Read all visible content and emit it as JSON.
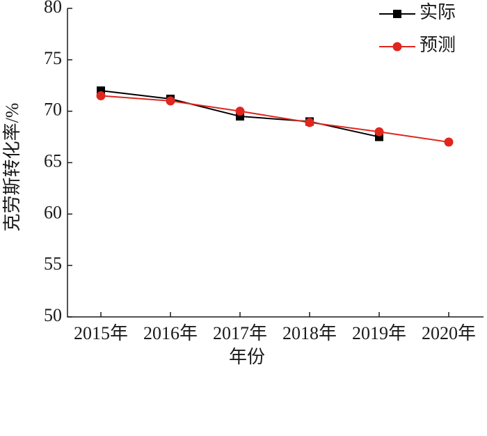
{
  "chart_data": {
    "type": "line",
    "x_label": "年份",
    "y_label": "克劳斯转化率/%",
    "categories": [
      "2015年",
      "2016年",
      "2017年",
      "2018年",
      "2019年",
      "2020年"
    ],
    "series": [
      {
        "name": "实际",
        "color": "#000000",
        "marker": "square",
        "values": [
          72,
          71.2,
          69.5,
          69,
          67.5,
          null
        ]
      },
      {
        "name": "预测",
        "color": "#e0261e",
        "marker": "circle",
        "values": [
          71.5,
          71,
          70,
          68.9,
          68,
          67
        ]
      }
    ],
    "ylim": [
      50,
      80
    ],
    "yticks": [
      50,
      55,
      60,
      65,
      70,
      75,
      80
    ],
    "grid": false,
    "legend": "upper right"
  }
}
